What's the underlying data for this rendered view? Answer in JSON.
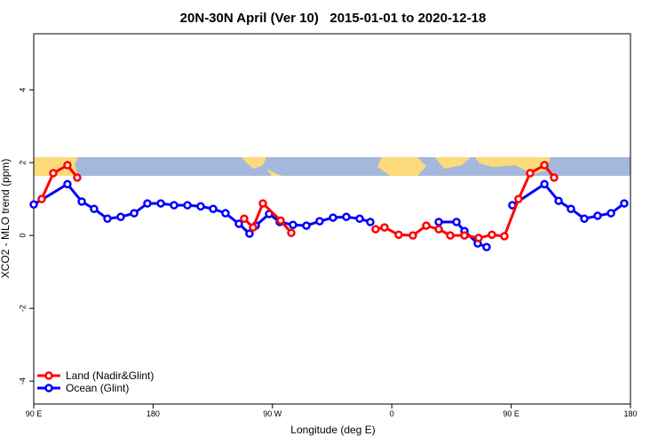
{
  "chart_data": {
    "type": "line",
    "title": "20N-30N April (Ver 10)   2015-01-01 to 2020-12-18",
    "x_label": "Longitude (deg E)",
    "y_label": "XCO2 - MLO trend (ppm)",
    "xlim": [
      90,
      540
    ],
    "xticks": [
      {
        "value": 90,
        "label": "90 E"
      },
      180,
      {
        "value": 270,
        "label": "90 W"
      },
      {
        "value": 360,
        "label": "0"
      },
      {
        "value": 450,
        "label": "90 E"
      },
      {
        "value": 540,
        "label": "180"
      }
    ],
    "ylim": [
      -4.63,
      5.54
    ],
    "yticks": [
      -4,
      -2,
      0,
      2,
      4
    ],
    "legend": "bottom-left",
    "series": [
      {
        "name": "Land (Nadir&Glint)",
        "color": "#ff0000",
        "x": [
          96.0,
          104.7,
          115.4,
          122.8,
          null,
          248.7,
          255.4,
          262.8,
          276.2,
          284.2,
          null,
          347.8,
          354.5,
          365.2,
          375.9,
          386.0,
          395.4,
          404.1,
          414.8,
          425.5,
          435.5,
          444.9,
          455.6,
          464.3,
          475.1,
          482.4
        ],
        "values": [
          1.0,
          1.71,
          1.93,
          1.59,
          null,
          0.46,
          0.22,
          0.88,
          0.41,
          0.07,
          null,
          0.17,
          0.22,
          0.02,
          0.0,
          0.27,
          0.17,
          0.0,
          0.0,
          -0.07,
          0.02,
          -0.02,
          1.0,
          1.71,
          1.93,
          1.59
        ]
      },
      {
        "name": "Ocean (Glint)",
        "color": "#0000ff",
        "x": [
          90,
          115.4,
          126.2,
          135.5,
          145.6,
          155.6,
          165.7,
          175.7,
          185.8,
          195.8,
          205.9,
          215.9,
          225.3,
          234.6,
          244.7,
          252.7,
          257.4,
          267.5,
          275.5,
          285.5,
          295.6,
          305.6,
          315.7,
          325.7,
          335.8,
          343.8,
          null,
          395.4,
          408.8,
          414.8,
          424.8,
          431.5,
          null,
          450.9,
          475.1,
          485.8,
          495.1,
          505.2,
          515.2,
          525.3,
          535.3
        ],
        "values": [
          0.85,
          1.41,
          0.93,
          0.73,
          0.46,
          0.51,
          0.61,
          0.88,
          0.88,
          0.83,
          0.83,
          0.8,
          0.73,
          0.61,
          0.32,
          0.05,
          0.27,
          0.59,
          0.37,
          0.29,
          0.27,
          0.39,
          0.49,
          0.51,
          0.46,
          0.37,
          null,
          0.37,
          0.37,
          0.12,
          -0.22,
          -0.32,
          null,
          0.83,
          1.41,
          0.95,
          0.73,
          0.46,
          0.54,
          0.61,
          0.88
        ]
      }
    ]
  }
}
